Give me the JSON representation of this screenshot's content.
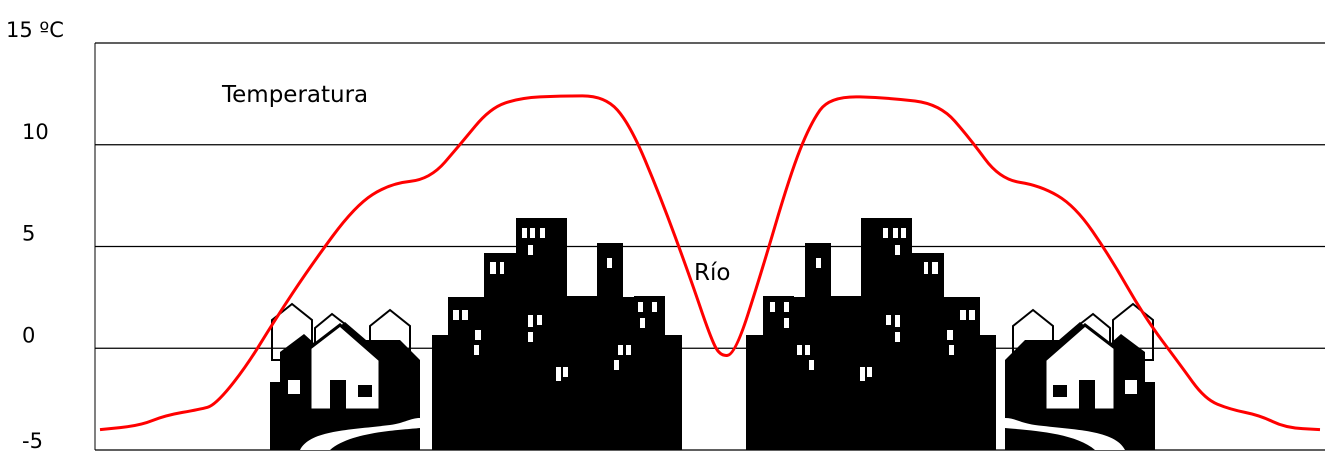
{
  "chart_data": {
    "type": "line",
    "title": "",
    "xlabel": "",
    "ylabel": "",
    "ylim": [
      -5,
      15
    ],
    "yticks": [
      {
        "value": 15,
        "label": "15 ºC"
      },
      {
        "value": 10,
        "label": "10"
      },
      {
        "value": 5,
        "label": "5"
      },
      {
        "value": 0,
        "label": "0"
      },
      {
        "value": -5,
        "label": "-5"
      }
    ],
    "grid": true,
    "series": [
      {
        "name": "Temperatura",
        "color": "#ff0000",
        "points": [
          [
            0,
            -4
          ],
          [
            40,
            -3.8
          ],
          [
            65,
            -3.3
          ],
          [
            100,
            -3
          ],
          [
            115,
            -2.8
          ],
          [
            145,
            -1
          ],
          [
            175,
            1.4
          ],
          [
            210,
            4
          ],
          [
            255,
            7
          ],
          [
            290,
            8.1
          ],
          [
            330,
            8.3
          ],
          [
            360,
            10
          ],
          [
            390,
            11.8
          ],
          [
            420,
            12.3
          ],
          [
            460,
            12.4
          ],
          [
            505,
            12.4
          ],
          [
            530,
            11
          ],
          [
            560,
            7.5
          ],
          [
            590,
            3.5
          ],
          [
            610,
            0.6
          ],
          [
            620,
            -0.4
          ],
          [
            635,
            -0.3
          ],
          [
            660,
            3.5
          ],
          [
            690,
            8.5
          ],
          [
            710,
            11
          ],
          [
            730,
            12.4
          ],
          [
            790,
            12.3
          ],
          [
            840,
            12
          ],
          [
            870,
            10.3
          ],
          [
            900,
            8.3
          ],
          [
            940,
            8
          ],
          [
            975,
            7
          ],
          [
            1010,
            4.5
          ],
          [
            1045,
            1.5
          ],
          [
            1080,
            -0.8
          ],
          [
            1105,
            -2.5
          ],
          [
            1130,
            -3
          ],
          [
            1160,
            -3.3
          ],
          [
            1185,
            -3.9
          ],
          [
            1220,
            -4
          ]
        ]
      }
    ],
    "annotations": [
      {
        "text": "Temperatura"
      },
      {
        "text": "Río"
      }
    ]
  },
  "colors": {
    "line": "#ff0000",
    "grid": "#000000",
    "buildings": "#000000"
  },
  "icons": [
    "houses-icon",
    "city-buildings-icon",
    "houses-icon",
    "city-buildings-icon",
    "houses-icon"
  ]
}
